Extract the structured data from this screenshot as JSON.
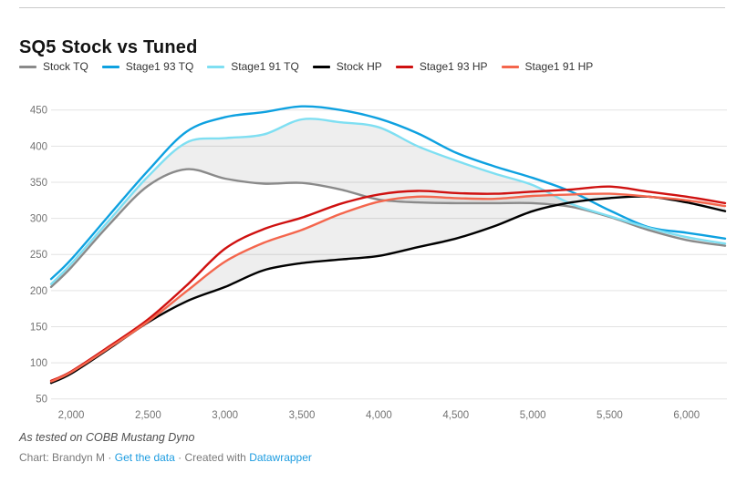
{
  "header": {
    "title": "SQ5 Stock vs Tuned"
  },
  "chart_data": {
    "type": "line",
    "x": [
      1870,
      2000,
      2250,
      2500,
      2750,
      3000,
      3250,
      3500,
      3750,
      4000,
      4250,
      4500,
      4750,
      5000,
      5250,
      5500,
      5750,
      6000,
      6250
    ],
    "series": [
      {
        "name": "Stock TQ",
        "color": "#8a8a8a",
        "values": [
          205,
          232,
          292,
          345,
          368,
          355,
          348,
          349,
          340,
          326,
          322,
          321,
          321,
          321,
          316,
          302,
          284,
          270,
          262
        ]
      },
      {
        "name": "Stage1 93 TQ",
        "color": "#0ea1e0",
        "values": [
          216,
          243,
          305,
          366,
          420,
          440,
          447,
          455,
          450,
          438,
          418,
          391,
          372,
          356,
          337,
          311,
          288,
          280,
          272
        ]
      },
      {
        "name": "Stage1 91 TQ",
        "color": "#7fdff2",
        "values": [
          209,
          237,
          298,
          358,
          405,
          411,
          416,
          437,
          433,
          426,
          400,
          380,
          362,
          346,
          320,
          303,
          287,
          274,
          265
        ]
      },
      {
        "name": "Stock HP",
        "color": "#000000",
        "values": [
          72,
          85,
          120,
          156,
          185,
          205,
          228,
          238,
          243,
          248,
          260,
          272,
          289,
          310,
          322,
          328,
          330,
          322,
          310
        ]
      },
      {
        "name": "Stage1 93 HP",
        "color": "#cf1110",
        "values": [
          75,
          88,
          123,
          160,
          207,
          258,
          285,
          301,
          320,
          333,
          338,
          335,
          334,
          337,
          340,
          344,
          337,
          330,
          321
        ]
      },
      {
        "name": "Stage1 91 HP",
        "color": "#f4664d",
        "values": [
          74,
          87,
          121,
          157,
          199,
          240,
          266,
          284,
          306,
          323,
          330,
          328,
          327,
          331,
          333,
          334,
          330,
          325,
          317
        ]
      }
    ],
    "bands": [
      {
        "top": "Stage1 91 TQ",
        "bottom": "Stock TQ"
      },
      {
        "top": "Stage1 91 HP",
        "bottom": "Stock HP"
      }
    ],
    "band_fill": "rgba(0,0,0,0.065)",
    "grid": "horizontal",
    "grid_color": "#e3e3e3",
    "axis_text_color": "#737373",
    "xticks": [
      2000,
      2500,
      3000,
      3500,
      4000,
      4500,
      5000,
      5500,
      6000
    ],
    "yticks": [
      50,
      100,
      150,
      200,
      250,
      300,
      350,
      400,
      450
    ],
    "xlim": [
      1870,
      6280
    ],
    "ylim": [
      50,
      450
    ],
    "title": "SQ5 Stock vs Tuned",
    "xlabel": "",
    "ylabel": "",
    "legend_position": "top"
  },
  "footer": {
    "note": "As tested on COBB Mustang Dyno",
    "byline_label": "Chart:",
    "byline_name": "Brandyn M",
    "separator": "·",
    "get_data_link": "Get the data",
    "created_with": "Created with",
    "datawrapper_link": "Datawrapper",
    "link_color": "#1d9ce0"
  }
}
